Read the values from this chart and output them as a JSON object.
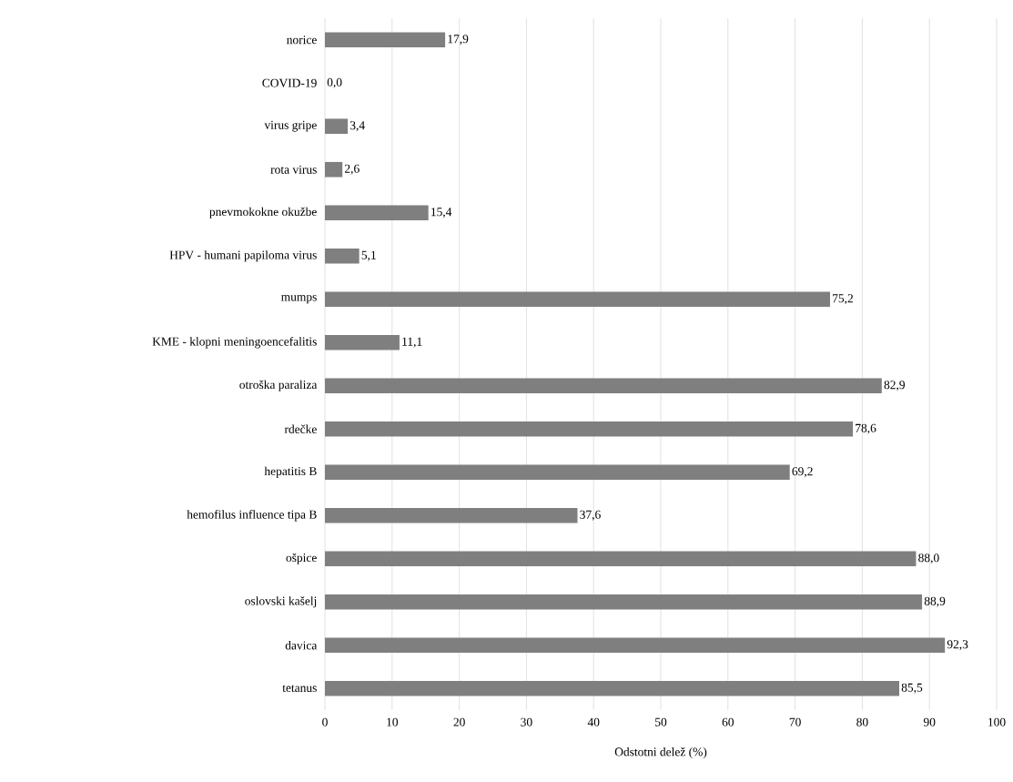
{
  "chart_data": {
    "type": "bar",
    "orientation": "horizontal",
    "xlabel": "Odstotni delež (%)",
    "categories": [
      "norice",
      "COVID-19",
      "virus gripe",
      "rota virus",
      "pnevmokokne okužbe",
      "HPV - humani papiloma virus",
      "mumps",
      "KME - klopni meningoencefalitis",
      "otroška paraliza",
      "rdečke",
      "hepatitis B",
      "hemofilus influence tipa B",
      "ošpice",
      "oslovski kašelj",
      "davica",
      "tetanus"
    ],
    "values": [
      17.9,
      0.0,
      3.4,
      2.6,
      15.4,
      5.1,
      75.2,
      11.1,
      82.9,
      78.6,
      69.2,
      37.6,
      88.0,
      88.9,
      92.3,
      85.5
    ],
    "value_labels": [
      "17,9",
      "0,0",
      "3,4",
      "2,6",
      "15,4",
      "5,1",
      "75,2",
      "11,1",
      "82,9",
      "78,6",
      "69,2",
      "37,6",
      "88,0",
      "88,9",
      "92,3",
      "85,5"
    ],
    "color": "#7f7f7f",
    "xlim": [
      0,
      100
    ],
    "xticks": [
      0,
      10,
      20,
      30,
      40,
      50,
      60,
      70,
      80,
      90,
      100
    ],
    "grid": "x"
  }
}
